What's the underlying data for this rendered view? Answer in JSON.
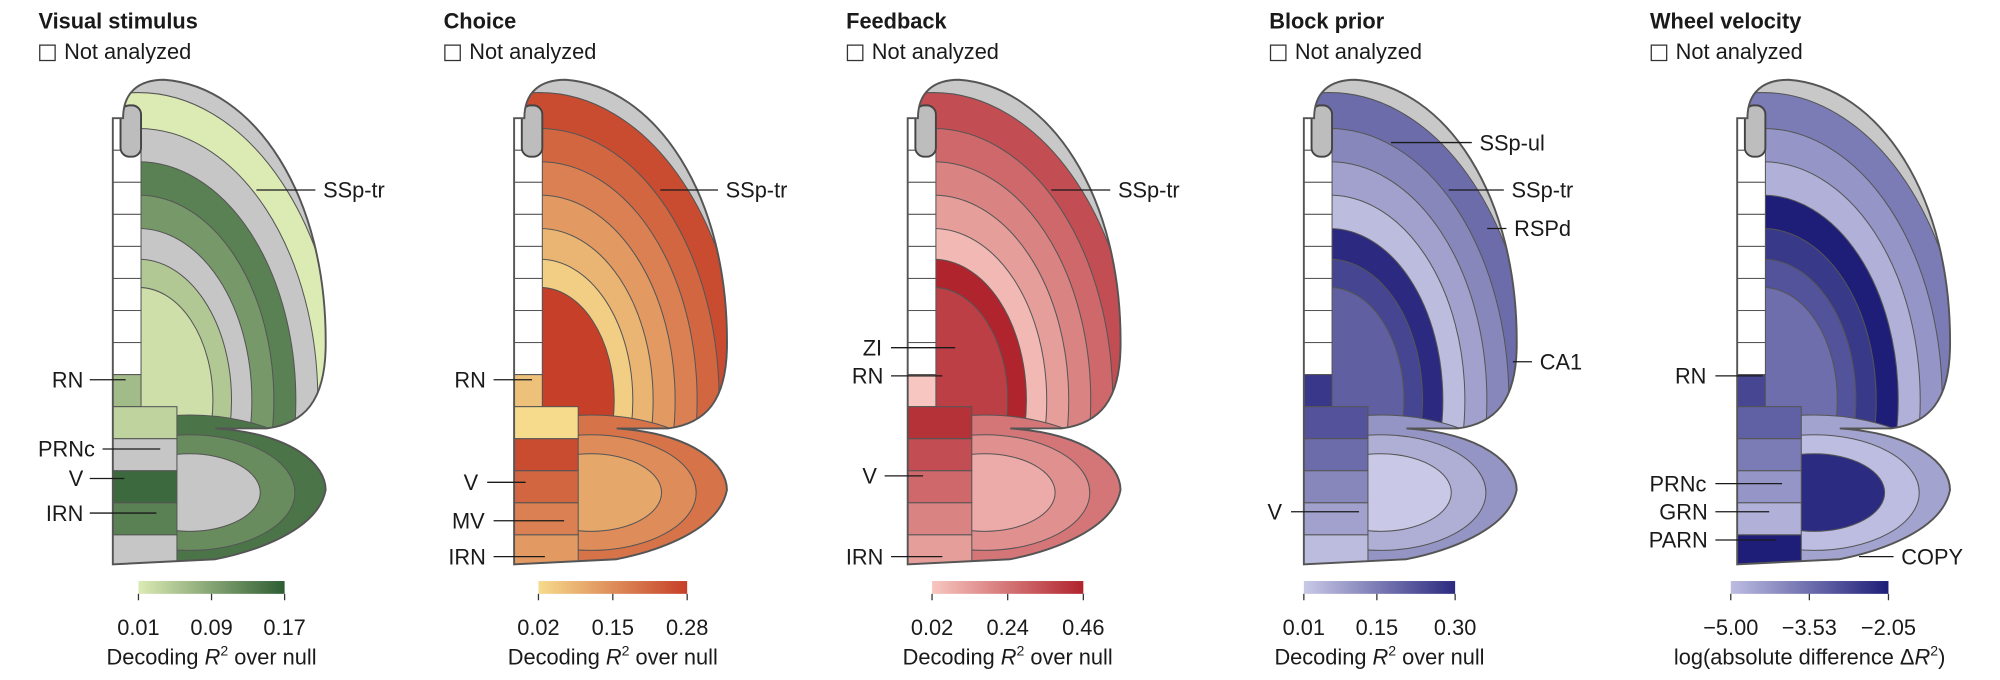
{
  "panels": [
    {
      "title": "Visual stimulus",
      "legend": "Not analyzed",
      "colormap": [
        "#dcebb4",
        "#2e5d33"
      ],
      "ticks": [
        0.01,
        0.09,
        0.17
      ],
      "colorbar_label": {
        "before": "Decoding ",
        "var": "R",
        "sup": "2",
        "after": " over null"
      },
      "labels": [
        "SSp-tr",
        "RN",
        "PRNc",
        "V",
        "IRN"
      ]
    },
    {
      "title": "Choice",
      "legend": "Not analyzed",
      "colormap": [
        "#f6db8c",
        "#c63f28"
      ],
      "ticks": [
        0.02,
        0.15,
        0.28
      ],
      "colorbar_label": {
        "before": "Decoding ",
        "var": "R",
        "sup": "2",
        "after": " over null"
      },
      "labels": [
        "SSp-tr",
        "RN",
        "V",
        "MV",
        "IRN"
      ]
    },
    {
      "title": "Feedback",
      "legend": "Not analyzed",
      "colormap": [
        "#f8c6c0",
        "#b0242d"
      ],
      "ticks": [
        0.02,
        0.24,
        0.46
      ],
      "colorbar_label": {
        "before": "Decoding ",
        "var": "R",
        "sup": "2",
        "after": " over null"
      },
      "labels": [
        "SSp-tr",
        "ZI",
        "RN",
        "V",
        "IRN"
      ]
    },
    {
      "title": "Block prior",
      "legend": "Not analyzed",
      "colormap": [
        "#c9c9e7",
        "#2b2a80"
      ],
      "ticks": [
        0.01,
        0.15,
        {
          "value": 0.3,
          "label": "0.30"
        }
      ],
      "colorbar_label": {
        "before": "Decoding ",
        "var": "R",
        "sup": "2",
        "after": " over null"
      },
      "labels": [
        "SSp-ul",
        "SSp-tr",
        "RSPd",
        "CA1",
        "V"
      ]
    },
    {
      "title": "Wheel velocity",
      "legend": "Not analyzed",
      "colormap": [
        "#bdbde2",
        "#1e1e78"
      ],
      "ticks": [
        {
          "value": -5,
          "label": "−5.00"
        },
        {
          "value": -3.53,
          "label": "−3.53"
        },
        {
          "value": -2.05,
          "label": "−2.05"
        }
      ],
      "colorbar_label": {
        "before": "log(absolute difference Δ",
        "var": "R",
        "sup": "2",
        "after": ")"
      },
      "labels": [
        "RN",
        "PRNc",
        "GRN",
        "PARN",
        "COPY"
      ]
    }
  ]
}
